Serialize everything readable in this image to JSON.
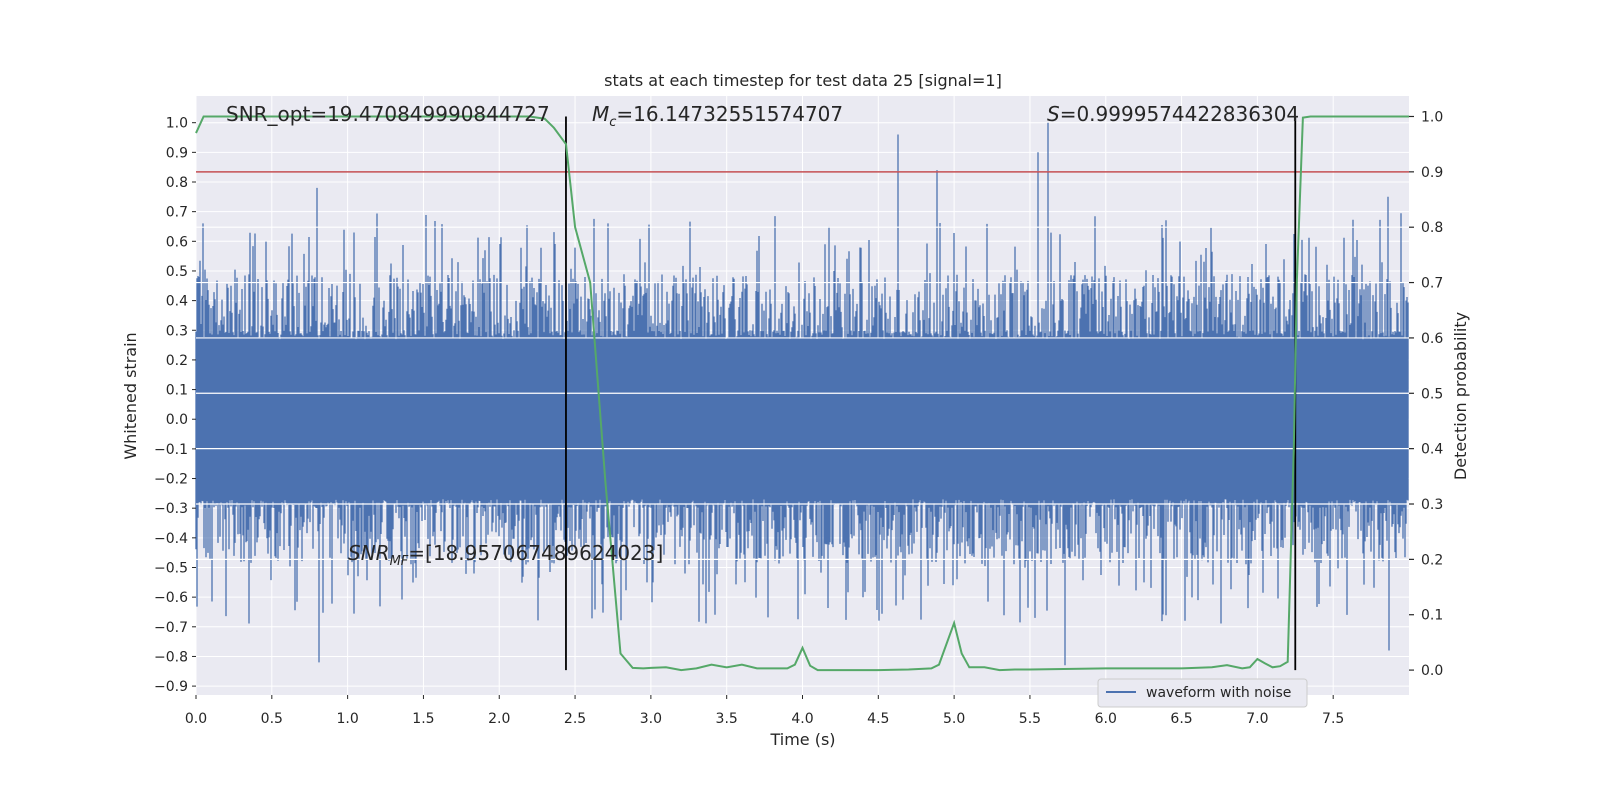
{
  "chart_data": {
    "type": "line",
    "title": "stats at each timestep for test data 25 [signal=1]",
    "xlabel": "Time (s)",
    "ylabel_left": "Whitened strain",
    "ylabel_right": "Detection probability",
    "xlim": [
      0.0,
      8.0
    ],
    "ylim_left": [
      -0.93,
      1.09
    ],
    "ylim_right": [
      -0.045,
      1.037
    ],
    "grid": true,
    "legend_placement": "lower-right",
    "xticks": [
      "0.0",
      "0.5",
      "1.0",
      "1.5",
      "2.0",
      "2.5",
      "3.0",
      "3.5",
      "4.0",
      "4.5",
      "5.0",
      "5.5",
      "6.0",
      "6.5",
      "7.0",
      "7.5"
    ],
    "xtick_values": [
      0.0,
      0.5,
      1.0,
      1.5,
      2.0,
      2.5,
      3.0,
      3.5,
      4.0,
      4.5,
      5.0,
      5.5,
      6.0,
      6.5,
      7.0,
      7.5
    ],
    "yticks_left": [
      "1.0",
      "0.9",
      "0.8",
      "0.7",
      "0.6",
      "0.5",
      "0.4",
      "0.3",
      "0.2",
      "0.1",
      "0.0",
      "−0.1",
      "−0.2",
      "−0.3",
      "−0.4",
      "−0.5",
      "−0.6",
      "−0.7",
      "−0.8",
      "−0.9"
    ],
    "ytick_values_left": [
      1.0,
      0.9,
      0.8,
      0.7,
      0.6,
      0.5,
      0.4,
      0.3,
      0.2,
      0.1,
      0.0,
      -0.1,
      -0.2,
      -0.3,
      -0.4,
      -0.5,
      -0.6,
      -0.7,
      -0.8,
      -0.9
    ],
    "yticks_right": [
      "1.0",
      "0.9",
      "0.8",
      "0.7",
      "0.6",
      "0.5",
      "0.4",
      "0.3",
      "0.2",
      "0.1",
      "0.0"
    ],
    "ytick_values_right": [
      1.0,
      0.9,
      0.8,
      0.7,
      0.6,
      0.5,
      0.4,
      0.3,
      0.2,
      0.1,
      0.0
    ],
    "annotations": {
      "snr_opt": "SNR_opt=19.470849990844727",
      "mc_symbol": "M",
      "mc_sub": "c",
      "mc_value": "=16.14732551574707",
      "s_symbol": "S",
      "s_value": "=0.9999574422836304",
      "snrmf_symbol": "SNR",
      "snrmf_sub": "MF",
      "snrmf_value": "=[18.957067489624023]"
    },
    "vertical_lines_x": [
      2.44,
      7.25
    ],
    "threshold_line_prob": 0.9,
    "colors": {
      "waveform": "#4c72b0",
      "probability": "#55a868",
      "threshold": "#c44e52",
      "markers": "#000000",
      "plot_bg": "#eaeaf2",
      "grid": "#ffffff"
    },
    "series": [
      {
        "name": "waveform with noise",
        "axis": "left",
        "envelope": {
          "typical_amplitude": 0.27,
          "peak_range": [
            0.45,
            0.8
          ]
        },
        "notable_peaks": [
          {
            "x": 0.8,
            "y": 0.78
          },
          {
            "x": 0.81,
            "y": -0.82
          },
          {
            "x": 4.63,
            "y": 0.96
          },
          {
            "x": 4.89,
            "y": 0.84
          },
          {
            "x": 5.55,
            "y": 0.9
          },
          {
            "x": 5.62,
            "y": 1.0
          },
          {
            "x": 5.73,
            "y": -0.83
          },
          {
            "x": 7.86,
            "y": 0.75
          },
          {
            "x": 7.87,
            "y": -0.78
          }
        ]
      },
      {
        "axis": "right",
        "x": [
          0.0,
          0.05,
          0.1,
          0.3,
          0.5,
          1.0,
          1.5,
          2.0,
          2.2,
          2.3,
          2.36,
          2.44,
          2.5,
          2.6,
          2.7,
          2.8,
          2.88,
          2.95,
          3.0,
          3.1,
          3.2,
          3.3,
          3.4,
          3.5,
          3.6,
          3.7,
          3.8,
          3.9,
          3.95,
          4.0,
          4.05,
          4.1,
          4.2,
          4.5,
          4.7,
          4.85,
          4.9,
          5.0,
          5.05,
          5.1,
          5.2,
          5.3,
          5.4,
          5.5,
          6.0,
          6.5,
          6.7,
          6.8,
          6.9,
          6.95,
          7.0,
          7.05,
          7.1,
          7.15,
          7.2,
          7.24,
          7.26,
          7.3,
          7.35,
          7.4,
          8.0
        ],
        "values": [
          0.97,
          1.0,
          1.0,
          1.0,
          1.0,
          1.0,
          1.0,
          1.0,
          1.0,
          0.996,
          0.98,
          0.95,
          0.8,
          0.7,
          0.34,
          0.03,
          0.004,
          0.003,
          0.004,
          0.005,
          0.0,
          0.003,
          0.01,
          0.005,
          0.01,
          0.003,
          0.003,
          0.003,
          0.01,
          0.04,
          0.008,
          0.0,
          0.0,
          0.0,
          0.001,
          0.003,
          0.01,
          0.085,
          0.03,
          0.005,
          0.005,
          0.0,
          0.001,
          0.001,
          0.003,
          0.003,
          0.005,
          0.009,
          0.003,
          0.005,
          0.02,
          0.012,
          0.005,
          0.007,
          0.015,
          0.4,
          0.7,
          0.998,
          1.0,
          1.0,
          1.0
        ]
      }
    ]
  }
}
